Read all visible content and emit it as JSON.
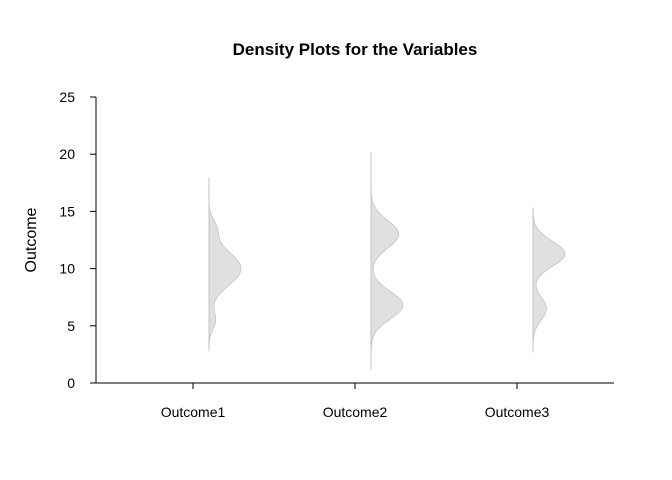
{
  "chart_data": {
    "type": "half-violin",
    "title": "Density Plots for the Variables",
    "xlabel": "",
    "ylabel": "Outcome",
    "ylim": [
      0,
      25
    ],
    "yticks": [
      0,
      5,
      10,
      15,
      20,
      25
    ],
    "categories": [
      "Outcome1",
      "Outcome2",
      "Outcome3"
    ],
    "fill_color": "#e0e0e0",
    "stroke_color": "#c4c4c4",
    "series": [
      {
        "category": "Outcome1",
        "range": [
          2.8,
          18.0
        ],
        "peaks": [
          {
            "y": 5.5,
            "w": 0.8,
            "h": 0.2
          },
          {
            "y": 10.0,
            "w": 1.5,
            "h": 1.0
          },
          {
            "y": 13.5,
            "w": 0.8,
            "h": 0.2
          }
        ]
      },
      {
        "category": "Outcome2",
        "range": [
          1.2,
          20.2
        ],
        "peaks": [
          {
            "y": 6.8,
            "w": 1.2,
            "h": 0.75
          },
          {
            "y": 13.0,
            "w": 1.2,
            "h": 0.65
          }
        ]
      },
      {
        "category": "Outcome3",
        "range": [
          2.7,
          15.3
        ],
        "peaks": [
          {
            "y": 6.5,
            "w": 1.0,
            "h": 0.4
          },
          {
            "y": 11.3,
            "w": 1.1,
            "h": 0.95
          }
        ]
      }
    ]
  }
}
